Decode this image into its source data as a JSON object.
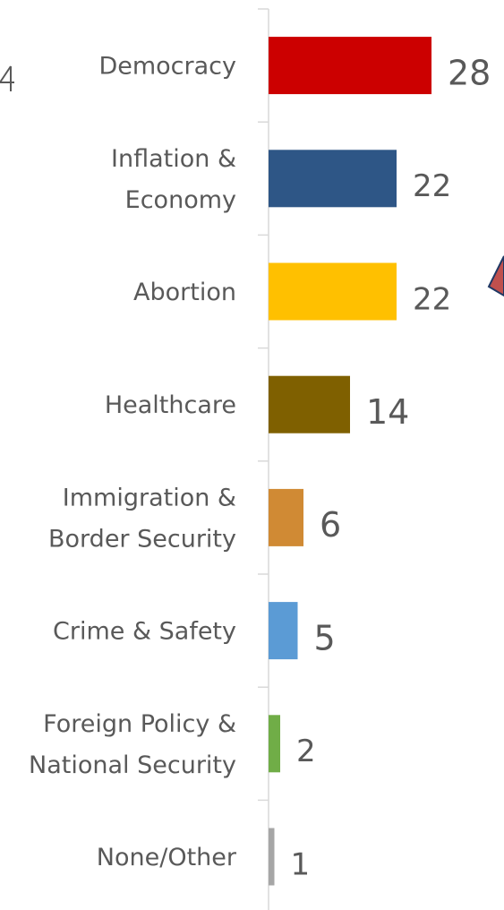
{
  "chart_data": {
    "type": "bar",
    "orientation": "horizontal",
    "categories": [
      [
        "Democracy"
      ],
      [
        "Inflation &",
        "Economy"
      ],
      [
        "Abortion"
      ],
      [
        "Healthcare"
      ],
      [
        "Immigration &",
        "Border Security"
      ],
      [
        "Crime & Safety"
      ],
      [
        "Foreign Policy &",
        "National Security"
      ],
      [
        "None/Other"
      ]
    ],
    "values": [
      28,
      22,
      22,
      14,
      6,
      5,
      2,
      1
    ],
    "colors": [
      "#cc0000",
      "#2e5686",
      "#ffc000",
      "#7f6000",
      "#d08a34",
      "#5b9bd5",
      "#70ad47",
      "#a6a6a6"
    ],
    "grid": false,
    "legend": "none"
  }
}
